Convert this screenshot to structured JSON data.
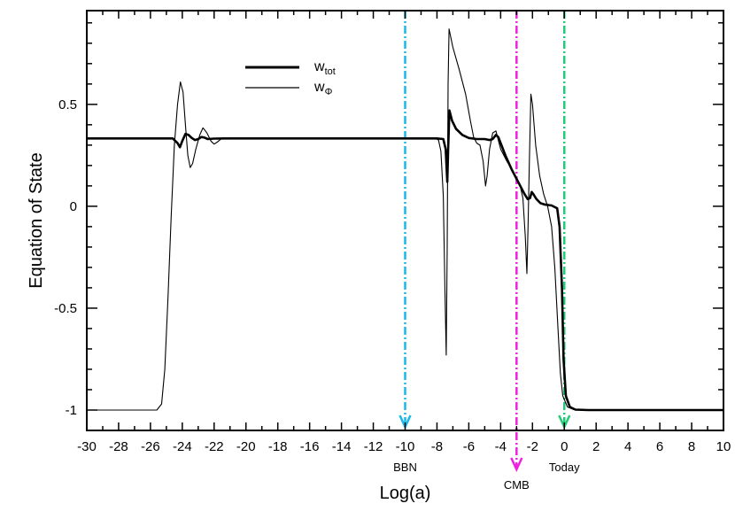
{
  "chart_data": {
    "type": "line",
    "title": "",
    "xlabel": "Log(a)",
    "ylabel": "Equation of State",
    "xlim": [
      -30,
      10
    ],
    "ylim": [
      -1.1,
      0.96
    ],
    "x_ticks": [
      -30,
      -28,
      -26,
      -24,
      -22,
      -20,
      -18,
      -16,
      -14,
      -12,
      -10,
      -8,
      -6,
      -4,
      -2,
      0,
      2,
      4,
      6,
      8,
      10
    ],
    "x_tick_labels": [
      "-30",
      "-28",
      "-26",
      "-24",
      "-22",
      "-20",
      "-18",
      "-16",
      "-14",
      "-12",
      "-10",
      "-8",
      "-6",
      "-4",
      "-2",
      "0",
      "2",
      "4",
      "6",
      "8",
      "10"
    ],
    "y_ticks": [
      0.5,
      0,
      -0.5,
      -1
    ],
    "y_tick_labels": [
      "0.5",
      "0",
      "-0.5",
      "-1"
    ],
    "legend": {
      "placement": "top-center",
      "entries": [
        {
          "base": "w",
          "sub": "tot",
          "style": "thick"
        },
        {
          "base": "w",
          "sub": "Φ",
          "style": "thin"
        }
      ]
    },
    "series": [
      {
        "name": "w_tot",
        "style": "thick",
        "color": "#000000",
        "points": [
          [
            -30,
            0.333
          ],
          [
            -24.6,
            0.333
          ],
          [
            -24.3,
            0.31
          ],
          [
            -24.15,
            0.29
          ],
          [
            -24.0,
            0.32
          ],
          [
            -23.8,
            0.355
          ],
          [
            -23.6,
            0.35
          ],
          [
            -23.4,
            0.335
          ],
          [
            -23.2,
            0.325
          ],
          [
            -23.0,
            0.33
          ],
          [
            -22.8,
            0.34
          ],
          [
            -22.6,
            0.337
          ],
          [
            -22.4,
            0.33
          ],
          [
            -22.0,
            0.332
          ],
          [
            -21.0,
            0.333
          ],
          [
            -8.0,
            0.333
          ],
          [
            -7.6,
            0.33
          ],
          [
            -7.45,
            0.28
          ],
          [
            -7.35,
            0.12
          ],
          [
            -7.3,
            0.27
          ],
          [
            -7.22,
            0.47
          ],
          [
            -7.05,
            0.42
          ],
          [
            -6.8,
            0.38
          ],
          [
            -6.4,
            0.35
          ],
          [
            -6.0,
            0.335
          ],
          [
            -5.5,
            0.33
          ],
          [
            -5.0,
            0.33
          ],
          [
            -4.7,
            0.325
          ],
          [
            -4.5,
            0.33
          ],
          [
            -4.3,
            0.35
          ],
          [
            -4.15,
            0.34
          ],
          [
            -3.7,
            0.25
          ],
          [
            -3.3,
            0.18
          ],
          [
            -2.9,
            0.12
          ],
          [
            -2.5,
            0.06
          ],
          [
            -2.3,
            0.035
          ],
          [
            -2.15,
            0.04
          ],
          [
            -2.05,
            0.07
          ],
          [
            -1.95,
            0.06
          ],
          [
            -1.75,
            0.035
          ],
          [
            -1.5,
            0.015
          ],
          [
            -1.2,
            0.008
          ],
          [
            -0.8,
            0.004
          ],
          [
            -0.45,
            -0.01
          ],
          [
            -0.3,
            -0.1
          ],
          [
            -0.15,
            -0.4
          ],
          [
            -0.05,
            -0.75
          ],
          [
            0.1,
            -0.93
          ],
          [
            0.35,
            -0.985
          ],
          [
            0.7,
            -0.998
          ],
          [
            1.5,
            -1.0
          ],
          [
            10,
            -1.0
          ]
        ]
      },
      {
        "name": "w_Φ",
        "style": "thin",
        "color": "#000000",
        "points": [
          [
            -30,
            -1.0
          ],
          [
            -25.6,
            -1.0
          ],
          [
            -25.3,
            -0.97
          ],
          [
            -25.1,
            -0.8
          ],
          [
            -24.9,
            -0.45
          ],
          [
            -24.7,
            -0.05
          ],
          [
            -24.5,
            0.3
          ],
          [
            -24.3,
            0.5
          ],
          [
            -24.12,
            0.61
          ],
          [
            -23.95,
            0.56
          ],
          [
            -23.8,
            0.4
          ],
          [
            -23.65,
            0.25
          ],
          [
            -23.5,
            0.19
          ],
          [
            -23.35,
            0.21
          ],
          [
            -23.15,
            0.28
          ],
          [
            -22.9,
            0.35
          ],
          [
            -22.7,
            0.385
          ],
          [
            -22.45,
            0.36
          ],
          [
            -22.2,
            0.32
          ],
          [
            -22.0,
            0.305
          ],
          [
            -21.8,
            0.315
          ],
          [
            -21.5,
            0.335
          ],
          [
            -21.2,
            0.335
          ],
          [
            -20.8,
            0.33
          ],
          [
            -20.0,
            0.333
          ],
          [
            -9.0,
            0.333
          ],
          [
            -8.1,
            0.333
          ],
          [
            -7.9,
            0.325
          ],
          [
            -7.75,
            0.27
          ],
          [
            -7.6,
            0.05
          ],
          [
            -7.5,
            -0.4
          ],
          [
            -7.42,
            -0.73
          ],
          [
            -7.36,
            -0.2
          ],
          [
            -7.3,
            0.6
          ],
          [
            -7.24,
            0.87
          ],
          [
            -7.0,
            0.78
          ],
          [
            -6.6,
            0.67
          ],
          [
            -6.2,
            0.55
          ],
          [
            -5.9,
            0.42
          ],
          [
            -5.7,
            0.34
          ],
          [
            -5.5,
            0.31
          ],
          [
            -5.3,
            0.3
          ],
          [
            -5.1,
            0.22
          ],
          [
            -4.95,
            0.1
          ],
          [
            -4.85,
            0.15
          ],
          [
            -4.7,
            0.28
          ],
          [
            -4.5,
            0.36
          ],
          [
            -4.3,
            0.37
          ],
          [
            -4.0,
            0.28
          ],
          [
            -3.6,
            0.22
          ],
          [
            -3.2,
            0.17
          ],
          [
            -2.8,
            0.11
          ],
          [
            -2.6,
            0.04
          ],
          [
            -2.45,
            -0.15
          ],
          [
            -2.35,
            -0.33
          ],
          [
            -2.28,
            -0.1
          ],
          [
            -2.2,
            0.2
          ],
          [
            -2.1,
            0.55
          ],
          [
            -2.0,
            0.5
          ],
          [
            -1.8,
            0.3
          ],
          [
            -1.55,
            0.15
          ],
          [
            -1.3,
            0.06
          ],
          [
            -1.05,
            0.0
          ],
          [
            -0.8,
            -0.1
          ],
          [
            -0.6,
            -0.3
          ],
          [
            -0.4,
            -0.6
          ],
          [
            -0.25,
            -0.82
          ],
          [
            -0.1,
            -0.93
          ],
          [
            0.2,
            -0.985
          ],
          [
            0.6,
            -0.998
          ],
          [
            1.5,
            -1.0
          ],
          [
            10,
            -1.0
          ]
        ]
      }
    ],
    "markers": [
      {
        "x": -10,
        "label": "BBN",
        "color": "#1ab8e8"
      },
      {
        "x": -3,
        "label": "CMB",
        "color": "#f020e0"
      },
      {
        "x": 0,
        "label": "Today",
        "color": "#22cc77"
      }
    ]
  }
}
